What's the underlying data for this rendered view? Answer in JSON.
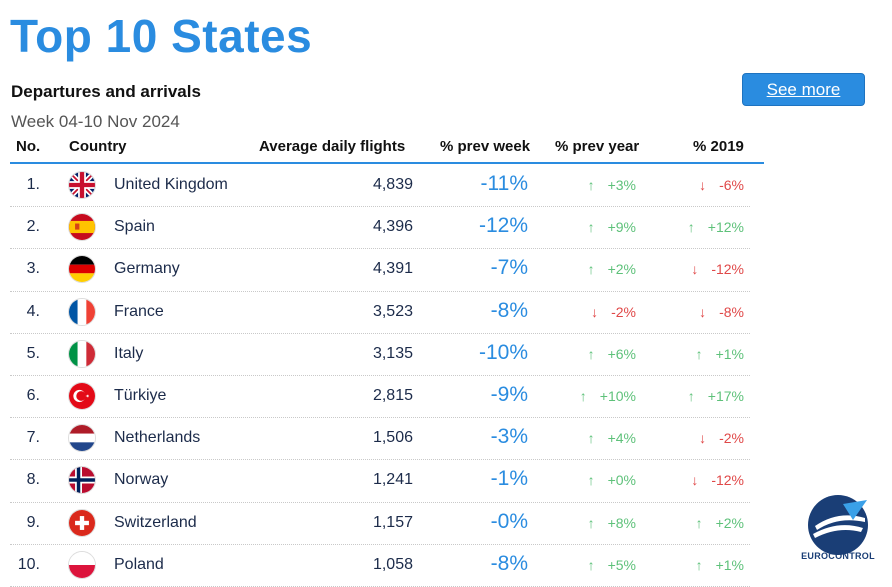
{
  "title": "Top 10 States",
  "subtitle": "Departures and arrivals",
  "week": "Week 04-10 Nov 2024",
  "see_more": "See more",
  "columns": {
    "no": "No.",
    "country": "Country",
    "flights": "Average daily flights",
    "prev_week": "% prev week",
    "prev_year": "% prev year",
    "y2019": "% 2019"
  },
  "rows": [
    {
      "no": "1.",
      "country": "United Kingdom",
      "flag": "uk-flag-icon",
      "flights": "4,839",
      "prev_week": "-11%",
      "prev_year": "+3%",
      "prev_year_dir": "up",
      "y2019": "-6%",
      "y2019_dir": "down"
    },
    {
      "no": "2.",
      "country": "Spain",
      "flag": "spain-flag-icon",
      "flights": "4,396",
      "prev_week": "-12%",
      "prev_year": "+9%",
      "prev_year_dir": "up",
      "y2019": "+12%",
      "y2019_dir": "up"
    },
    {
      "no": "3.",
      "country": "Germany",
      "flag": "germany-flag-icon",
      "flights": "4,391",
      "prev_week": "-7%",
      "prev_year": "+2%",
      "prev_year_dir": "up",
      "y2019": "-12%",
      "y2019_dir": "down"
    },
    {
      "no": "4.",
      "country": "France",
      "flag": "france-flag-icon",
      "flights": "3,523",
      "prev_week": "-8%",
      "prev_year": "-2%",
      "prev_year_dir": "down",
      "y2019": "-8%",
      "y2019_dir": "down"
    },
    {
      "no": "5.",
      "country": "Italy",
      "flag": "italy-flag-icon",
      "flights": "3,135",
      "prev_week": "-10%",
      "prev_year": "+6%",
      "prev_year_dir": "up",
      "y2019": "+1%",
      "y2019_dir": "up"
    },
    {
      "no": "6.",
      "country": "Türkiye",
      "flag": "turkiye-flag-icon",
      "flights": "2,815",
      "prev_week": "-9%",
      "prev_year": "+10%",
      "prev_year_dir": "up",
      "y2019": "+17%",
      "y2019_dir": "up"
    },
    {
      "no": "7.",
      "country": "Netherlands",
      "flag": "netherlands-flag-icon",
      "flights": "1,506",
      "prev_week": "-3%",
      "prev_year": "+4%",
      "prev_year_dir": "up",
      "y2019": "-2%",
      "y2019_dir": "down"
    },
    {
      "no": "8.",
      "country": "Norway",
      "flag": "norway-flag-icon",
      "flights": "1,241",
      "prev_week": "-1%",
      "prev_year": "+0%",
      "prev_year_dir": "up",
      "y2019": "-12%",
      "y2019_dir": "down"
    },
    {
      "no": "9.",
      "country": "Switzerland",
      "flag": "switzerland-flag-icon",
      "flights": "1,157",
      "prev_week": "-0%",
      "prev_year": "+8%",
      "prev_year_dir": "up",
      "y2019": "+2%",
      "y2019_dir": "up"
    },
    {
      "no": "10.",
      "country": "Poland",
      "flag": "poland-flag-icon",
      "flights": "1,058",
      "prev_week": "-8%",
      "prev_year": "+5%",
      "prev_year_dir": "up",
      "y2019": "+1%",
      "y2019_dir": "up"
    }
  ],
  "logo": {
    "icon": "eurocontrol-logo-icon",
    "text": "EUROCONTROL"
  },
  "colors": {
    "accent": "#2a8ce0",
    "up": "#5ec17a",
    "down": "#e04848"
  }
}
